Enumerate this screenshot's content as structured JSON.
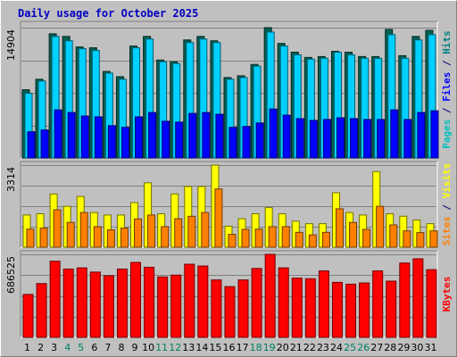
{
  "chart_data": {
    "type": "bar",
    "title": "Daily usage for October 2025",
    "categories": [
      "1",
      "2",
      "3",
      "4",
      "5",
      "6",
      "7",
      "8",
      "9",
      "10",
      "11",
      "12",
      "13",
      "14",
      "15",
      "16",
      "17",
      "18",
      "19",
      "20",
      "21",
      "22",
      "23",
      "24",
      "25",
      "26",
      "27",
      "28",
      "29",
      "30",
      "31"
    ],
    "weekend_categories": [
      "4",
      "5",
      "11",
      "12",
      "18",
      "19",
      "25",
      "26"
    ],
    "panels": [
      {
        "name": "hits-files-pages",
        "ymax_label": "14904",
        "ylim": [
          0,
          14904
        ],
        "side_labels": [
          {
            "text": "Pages",
            "color": "#00c0c0"
          },
          {
            "text": " / ",
            "color": "#000080"
          },
          {
            "text": "Files",
            "color": "#0000ff"
          },
          {
            "text": " / ",
            "color": "#000080"
          },
          {
            "text": "Hits",
            "color": "#008080"
          }
        ],
        "series": [
          {
            "name": "Hits",
            "color": "#006050",
            "values": [
              7800,
              9000,
              14200,
              13900,
              12700,
              12600,
              9900,
              9300,
              12800,
              13900,
              11200,
              11000,
              13500,
              13900,
              13400,
              9200,
              9400,
              10700,
              14904,
              13100,
              12100,
              11500,
              11600,
              12200,
              12100,
              11600,
              11600,
              14700,
              11700,
              13900,
              14600
            ]
          },
          {
            "name": "Files",
            "color": "#00d0ff",
            "values": [
              7400,
              8800,
              13900,
              13400,
              12500,
              12300,
              9700,
              9000,
              12600,
              13600,
              11000,
              10800,
              13200,
              13600,
              13200,
              9000,
              9200,
              10500,
              14400,
              12800,
              11800,
              11300,
              11400,
              12100,
              11800,
              11400,
              11400,
              14100,
              11400,
              13500,
              14100
            ]
          },
          {
            "name": "Pages",
            "color": "#0000ff",
            "values": [
              3000,
              3200,
              5500,
              5200,
              4800,
              4700,
              3700,
              3500,
              4700,
              5200,
              4200,
              4100,
              5100,
              5200,
              5000,
              3500,
              3600,
              4000,
              5600,
              4900,
              4500,
              4300,
              4400,
              4600,
              4500,
              4400,
              4400,
              5500,
              4400,
              5200,
              5400
            ]
          }
        ]
      },
      {
        "name": "visits-sites",
        "ymax_label": "3314",
        "ylim": [
          0,
          3314
        ],
        "side_labels": [
          {
            "text": "Sites",
            "color": "#ff8000"
          },
          {
            "text": " / ",
            "color": "#000080"
          },
          {
            "text": "Visits",
            "color": "#ffff00"
          }
        ],
        "series": [
          {
            "name": "Visits",
            "color": "#ffff00",
            "values": [
              1300,
              1350,
              2150,
              1650,
              2050,
              1400,
              1300,
              1300,
              1800,
              2600,
              1350,
              2150,
              2450,
              2450,
              3314,
              850,
              1150,
              1350,
              1600,
              1350,
              1050,
              950,
              950,
              2200,
              1400,
              1300,
              3050,
              1350,
              1250,
              1100,
              950
            ]
          },
          {
            "name": "Sites",
            "color": "#ff8000",
            "values": [
              730,
              770,
              1510,
              1000,
              1400,
              830,
              700,
              770,
              1140,
              1300,
              830,
              1150,
              1250,
              1400,
              2350,
              520,
              720,
              730,
              830,
              830,
              600,
              500,
              600,
              1550,
              1000,
              720,
              1650,
              900,
              660,
              590,
              660
            ]
          }
        ]
      },
      {
        "name": "kbytes",
        "ymax_label": "686525",
        "ylim": [
          0,
          686525
        ],
        "side_labels": [
          {
            "text": "KBytes",
            "color": "#ff0000"
          }
        ],
        "series": [
          {
            "name": "KBytes",
            "color": "#ff0000",
            "values": [
              355000,
              445000,
              630000,
              565000,
              575000,
              540000,
              510000,
              565000,
              620000,
              580000,
              500000,
              515000,
              605000,
              590000,
              475000,
              420000,
              475000,
              570000,
              686525,
              575000,
              490000,
              485000,
              550000,
              455000,
              440000,
              450000,
              550000,
              465000,
              615000,
              650000,
              560000
            ]
          }
        ]
      }
    ]
  }
}
